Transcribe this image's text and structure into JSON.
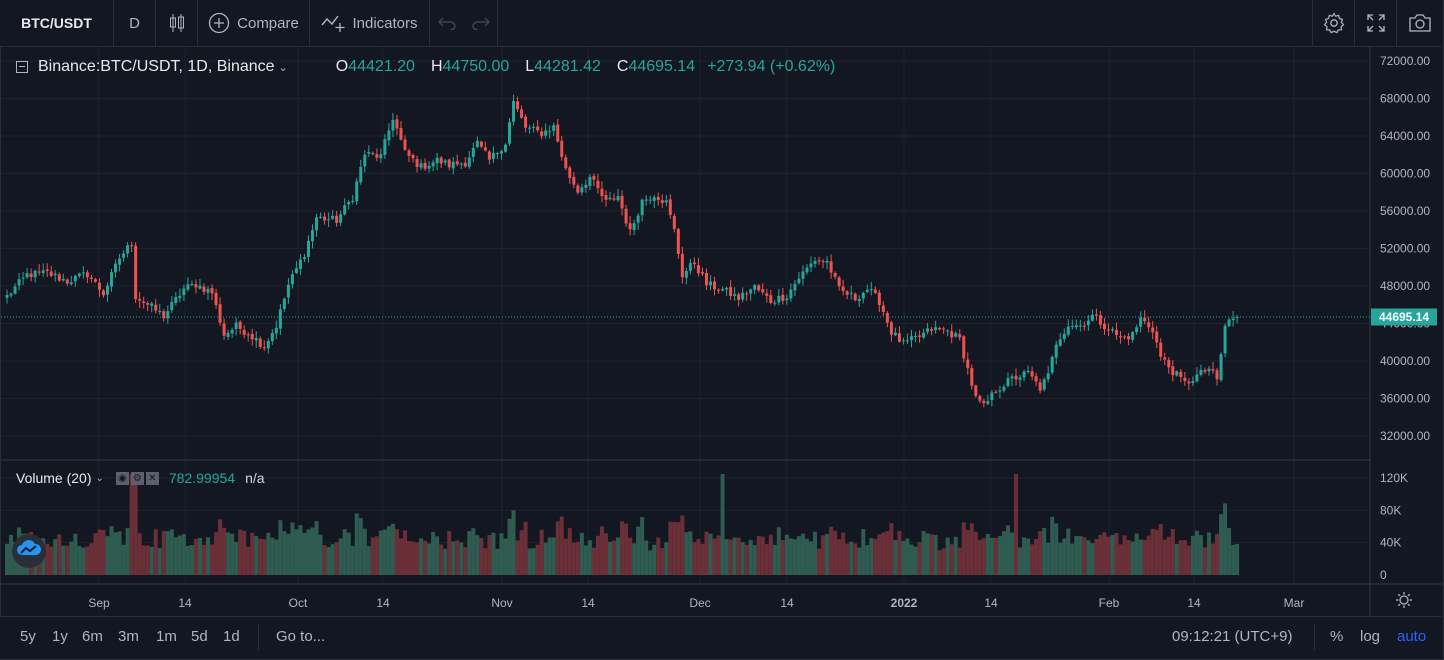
{
  "toolbar": {
    "symbol": "BTC/USDT",
    "interval": "D",
    "compare_label": "Compare",
    "indicators_label": "Indicators",
    "icons": [
      "candles-icon",
      "plus-circle-icon",
      "indicators-icon",
      "undo-icon",
      "redo-icon",
      "gear-icon",
      "fullscreen-icon",
      "camera-icon"
    ]
  },
  "legend": {
    "title": "Binance:BTC/USDT, 1D, Binance",
    "o_label": "O",
    "o_value": "44421.20",
    "h_label": "H",
    "h_value": "44750.00",
    "l_label": "L",
    "l_value": "44281.42",
    "c_label": "C",
    "c_value": "44695.14",
    "change": "+273.94 (+0.62%)"
  },
  "volume_legend": {
    "name": "Volume (20)",
    "value": "782.99954",
    "na": "n/a"
  },
  "colors": {
    "background": "#131722",
    "grid": "#1e222d",
    "up": "#26a69a",
    "down": "#ef5350",
    "up_volume": "#2f5c51",
    "down_volume": "#6b2f38",
    "text": "#b2b5be",
    "accent": "#2962ff"
  },
  "price_axis": {
    "labels": [
      "72000.00",
      "68000.00",
      "64000.00",
      "60000.00",
      "56000.00",
      "52000.00",
      "48000.00",
      "44000.00",
      "40000.00",
      "36000.00",
      "32000.00"
    ],
    "last_price": "44695.14"
  },
  "volume_axis": {
    "labels": [
      "120K",
      "80K",
      "40K",
      "0"
    ]
  },
  "time_axis": {
    "labels": [
      "Sep",
      "14",
      "Oct",
      "14",
      "Nov",
      "14",
      "Dec",
      "14",
      "2022",
      "14",
      "Feb",
      "14",
      "Mar"
    ]
  },
  "bottombar": {
    "ranges": [
      "5y",
      "1y",
      "6m",
      "3m",
      "1m",
      "5d",
      "1d"
    ],
    "goto": "Go to...",
    "clock": "09:12:21 (UTC+9)",
    "percent": "%",
    "log": "log",
    "auto": "auto"
  },
  "chart_data": {
    "type": "candlestick",
    "title": "Binance:BTC/USDT, 1D, Binance",
    "interval": "1D",
    "yrange": [
      30000,
      73000
    ],
    "volume_range": [
      0,
      130000
    ],
    "grid": true,
    "last_price": 44695.14,
    "candles_note": "daily candles from late Aug 2021 to early Mar 2022",
    "close_path": [
      {
        "x": 0,
        "c": 46900
      },
      {
        "x": 5,
        "c": 49200
      },
      {
        "x": 10,
        "c": 49400
      },
      {
        "x": 15,
        "c": 48500
      },
      {
        "x": 20,
        "c": 49300
      },
      {
        "x": 24,
        "c": 47200
      },
      {
        "x": 28,
        "c": 51000
      },
      {
        "x": 31,
        "c": 52600
      },
      {
        "x": 32,
        "c": 46900
      },
      {
        "x": 35,
        "c": 46000
      },
      {
        "x": 39,
        "c": 44800
      },
      {
        "x": 44,
        "c": 47700
      },
      {
        "x": 47,
        "c": 48200
      },
      {
        "x": 51,
        "c": 47300
      },
      {
        "x": 54,
        "c": 42800
      },
      {
        "x": 57,
        "c": 43700
      },
      {
        "x": 60,
        "c": 43000
      },
      {
        "x": 64,
        "c": 41600
      },
      {
        "x": 67,
        "c": 43800
      },
      {
        "x": 70,
        "c": 48100
      },
      {
        "x": 74,
        "c": 51500
      },
      {
        "x": 77,
        "c": 55300
      },
      {
        "x": 82,
        "c": 55000
      },
      {
        "x": 86,
        "c": 57500
      },
      {
        "x": 89,
        "c": 62100
      },
      {
        "x": 93,
        "c": 61800
      },
      {
        "x": 96,
        "c": 66000
      },
      {
        "x": 99,
        "c": 62200
      },
      {
        "x": 103,
        "c": 60700
      },
      {
        "x": 107,
        "c": 61400
      },
      {
        "x": 110,
        "c": 60900
      },
      {
        "x": 114,
        "c": 61200
      },
      {
        "x": 117,
        "c": 63200
      },
      {
        "x": 120,
        "c": 61400
      },
      {
        "x": 124,
        "c": 63300
      },
      {
        "x": 126,
        "c": 67600
      },
      {
        "x": 129,
        "c": 64900
      },
      {
        "x": 133,
        "c": 64300
      },
      {
        "x": 136,
        "c": 65000
      },
      {
        "x": 139,
        "c": 60400
      },
      {
        "x": 142,
        "c": 58200
      },
      {
        "x": 145,
        "c": 59600
      },
      {
        "x": 149,
        "c": 56900
      },
      {
        "x": 152,
        "c": 57600
      },
      {
        "x": 155,
        "c": 53700
      },
      {
        "x": 158,
        "c": 57100
      },
      {
        "x": 161,
        "c": 57800
      },
      {
        "x": 164,
        "c": 56900
      },
      {
        "x": 166,
        "c": 53900
      },
      {
        "x": 168,
        "c": 49200
      },
      {
        "x": 171,
        "c": 50500
      },
      {
        "x": 174,
        "c": 48200
      },
      {
        "x": 178,
        "c": 47600
      },
      {
        "x": 182,
        "c": 46700
      },
      {
        "x": 186,
        "c": 47900
      },
      {
        "x": 190,
        "c": 46400
      },
      {
        "x": 194,
        "c": 47000
      },
      {
        "x": 197,
        "c": 48900
      },
      {
        "x": 201,
        "c": 50800
      },
      {
        "x": 204,
        "c": 50600
      },
      {
        "x": 207,
        "c": 47600
      },
      {
        "x": 211,
        "c": 46700
      },
      {
        "x": 214,
        "c": 47700
      },
      {
        "x": 217,
        "c": 46400
      },
      {
        "x": 220,
        "c": 43100
      },
      {
        "x": 223,
        "c": 41800
      },
      {
        "x": 227,
        "c": 42600
      },
      {
        "x": 230,
        "c": 43400
      },
      {
        "x": 234,
        "c": 43200
      },
      {
        "x": 237,
        "c": 42300
      },
      {
        "x": 239,
        "c": 39100
      },
      {
        "x": 241,
        "c": 36000
      },
      {
        "x": 243,
        "c": 35100
      },
      {
        "x": 246,
        "c": 36900
      },
      {
        "x": 250,
        "c": 38100
      },
      {
        "x": 254,
        "c": 38700
      },
      {
        "x": 257,
        "c": 37100
      },
      {
        "x": 259,
        "c": 38400
      },
      {
        "x": 261,
        "c": 42000
      },
      {
        "x": 264,
        "c": 43900
      },
      {
        "x": 267,
        "c": 43800
      },
      {
        "x": 270,
        "c": 44800
      },
      {
        "x": 274,
        "c": 43500
      },
      {
        "x": 277,
        "c": 42400
      },
      {
        "x": 280,
        "c": 42800
      },
      {
        "x": 282,
        "c": 44500
      },
      {
        "x": 285,
        "c": 43400
      },
      {
        "x": 287,
        "c": 40400
      },
      {
        "x": 290,
        "c": 38900
      },
      {
        "x": 293,
        "c": 37600
      },
      {
        "x": 296,
        "c": 38400
      },
      {
        "x": 299,
        "c": 39200
      },
      {
        "x": 301,
        "c": 37900
      },
      {
        "x": 303,
        "c": 43600
      },
      {
        "x": 304,
        "c": 44400
      },
      {
        "x": 306,
        "c": 44695
      }
    ]
  }
}
